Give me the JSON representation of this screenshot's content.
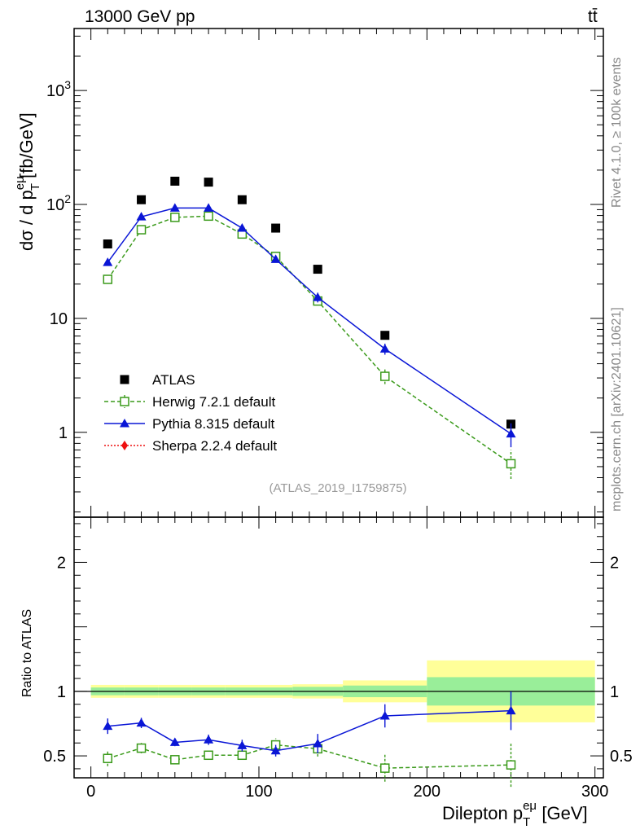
{
  "header": {
    "left": "13000 GeV pp",
    "right": "tt̄"
  },
  "side": {
    "rivet": "Rivet 4.1.0, ≥ 100k events",
    "mcplots": "mcplots.cern.ch [arXiv:2401.10621]"
  },
  "analysis_id": "(ATLAS_2019_I1759875)",
  "main_ylabel": {
    "prefix": "dσ / d p",
    "sup": "eμ",
    "sub": "T",
    "unit": " [fb/GeV]"
  },
  "ratio_ylabel": "Ratio to ATLAS",
  "xlabel": {
    "prefix": "Dilepton p",
    "sup": "eμ",
    "sub": "T",
    "unit": " [GeV]"
  },
  "legend": [
    {
      "label": "ATLAS",
      "color": "#000000",
      "marker": "square-filled"
    },
    {
      "label": "Herwig 7.2.1 default",
      "color": "#3a9a1a",
      "marker": "square-open"
    },
    {
      "label": "Pythia 8.315 default",
      "color": "#0a16d6",
      "marker": "triangle"
    },
    {
      "label": "Sherpa 2.2.4 default",
      "color": "#ee1111",
      "marker": "diamond"
    }
  ],
  "chart_data": [
    {
      "type": "scatter",
      "panel": "main",
      "yscale": "log",
      "xlim": [
        -10,
        305
      ],
      "ylim": [
        0.18,
        3500
      ],
      "y_ticks": [
        1,
        10,
        100,
        1000
      ],
      "y_tick_labels": [
        "1",
        "10",
        "10^2",
        "10^3"
      ],
      "x": [
        10,
        30,
        50,
        70,
        90,
        110,
        135,
        175,
        250
      ],
      "series": [
        {
          "name": "ATLAS",
          "values": [
            45,
            110,
            160,
            157,
            110,
            62,
            27,
            7.1,
            1.18
          ]
        },
        {
          "name": "Herwig 7.2.1 default",
          "values": [
            22,
            60,
            77,
            79,
            55,
            35,
            14.2,
            3.1,
            0.53
          ],
          "err_low": [
            1.5,
            3,
            3,
            3,
            3,
            2,
            1,
            0.45,
            0.14
          ],
          "err_high": [
            1.5,
            3,
            3,
            3,
            3,
            2,
            1,
            0.5,
            0.17
          ]
        },
        {
          "name": "Pythia 8.315 default",
          "values": [
            31,
            78,
            93,
            93,
            62,
            33,
            15.3,
            5.4,
            0.97
          ],
          "err_low": [
            2,
            3,
            3,
            3,
            3,
            2,
            1.5,
            0.6,
            0.23
          ],
          "err_high": [
            2,
            3,
            3,
            3,
            3,
            2,
            1.5,
            0.6,
            0.23
          ]
        },
        {
          "name": "Sherpa 2.2.4 default",
          "values": []
        }
      ]
    },
    {
      "type": "line",
      "panel": "ratio",
      "xlim": [
        -10,
        305
      ],
      "ylim": [
        0.33,
        2.35
      ],
      "y_ticks": [
        0.5,
        1,
        2
      ],
      "y_tick_labels": [
        "0.5",
        "1",
        "2"
      ],
      "x_ticks": [
        0,
        100,
        200,
        300
      ],
      "x_tick_labels": [
        "0",
        "100",
        "200",
        "300"
      ],
      "bin_edges": [
        0,
        20,
        40,
        60,
        80,
        100,
        120,
        150,
        200,
        300
      ],
      "band_inner": [
        0.03,
        0.03,
        0.03,
        0.03,
        0.03,
        0.03,
        0.035,
        0.045,
        0.11
      ],
      "band_outer": [
        0.05,
        0.05,
        0.05,
        0.05,
        0.05,
        0.05,
        0.055,
        0.085,
        0.24
      ],
      "x": [
        10,
        30,
        50,
        70,
        90,
        110,
        135,
        175,
        250
      ],
      "series": [
        {
          "name": "Herwig 7.2.1 default",
          "values": [
            0.48,
            0.56,
            0.47,
            0.505,
            0.505,
            0.585,
            0.555,
            0.405,
            0.43
          ],
          "err": [
            0.06,
            0.04,
            0.03,
            0.035,
            0.03,
            0.05,
            0.06,
            0.105,
            0.17
          ]
        },
        {
          "name": "Pythia 8.315 default",
          "values": [
            0.73,
            0.755,
            0.605,
            0.625,
            0.58,
            0.54,
            0.595,
            0.81,
            0.85
          ],
          "err": [
            0.06,
            0.04,
            0.03,
            0.04,
            0.045,
            0.045,
            0.075,
            0.09,
            0.15
          ]
        }
      ]
    }
  ]
}
